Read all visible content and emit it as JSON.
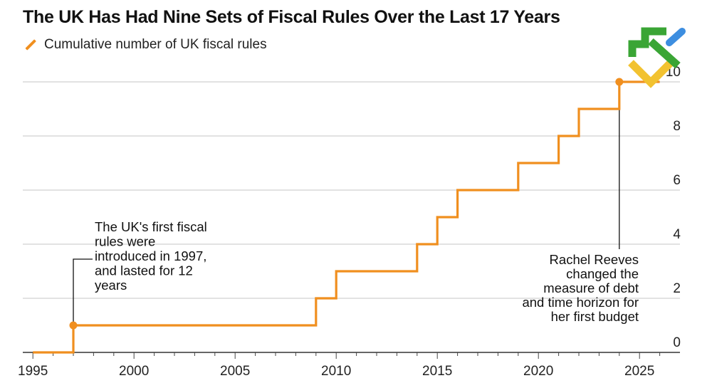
{
  "title": "The UK Has Had Nine Sets of Fiscal Rules Over the Last 17 Years",
  "legend": {
    "label": "Cumulative number of UK fiscal rules",
    "color": "#f08f1f"
  },
  "logo": {
    "icon": "stairs-logo-icon",
    "colors": [
      "#3aa535",
      "#f2c230",
      "#3d8ee0"
    ]
  },
  "chart_data": {
    "type": "line",
    "step": true,
    "series": [
      {
        "name": "Cumulative number of UK fiscal rules",
        "color": "#f08f1f",
        "x": [
          1995,
          1997,
          1997,
          2009,
          2009,
          2010,
          2010,
          2014,
          2014,
          2015,
          2015,
          2016,
          2016,
          2019,
          2019,
          2021,
          2021,
          2022,
          2022,
          2024,
          2024,
          2026
        ],
        "y": [
          0,
          0,
          1,
          1,
          2,
          2,
          3,
          3,
          4,
          4,
          5,
          5,
          6,
          6,
          7,
          7,
          8,
          8,
          9,
          9,
          10,
          10
        ]
      }
    ],
    "xlim": [
      1994.5,
      2027
    ],
    "ylim": [
      0,
      10
    ],
    "x_ticks": [
      1995,
      2000,
      2005,
      2010,
      2015,
      2020,
      2025
    ],
    "y_ticks": [
      0,
      2,
      4,
      6,
      8,
      10
    ],
    "y_axis_side": "right",
    "grid": "horizontal",
    "markers": [
      {
        "x": 1997,
        "y": 1
      },
      {
        "x": 2024,
        "y": 10
      }
    ],
    "annotations": [
      {
        "x": 1997,
        "y": 1,
        "lines": [
          "The UK's first fiscal",
          "rules were",
          "introduced in 1997,",
          "and lasted for 12",
          "years"
        ]
      },
      {
        "x": 2024,
        "y": 10,
        "lines": [
          "Rachel Reeves",
          "changed the",
          "measure of debt",
          "and time horizon for",
          "her first budget"
        ]
      }
    ]
  }
}
